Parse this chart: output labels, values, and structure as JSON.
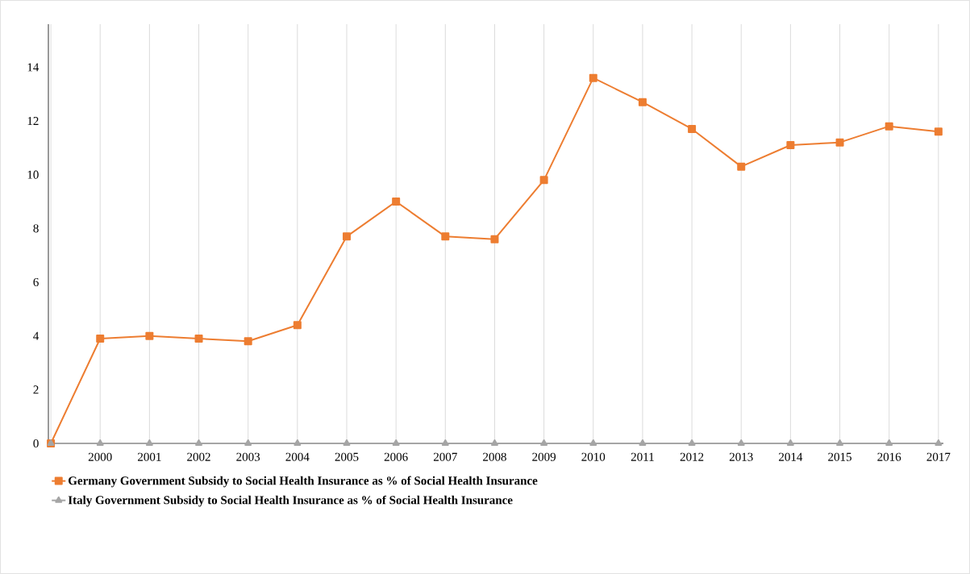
{
  "chart_data": {
    "type": "line",
    "categories": [
      null,
      "2000",
      "2001",
      "2002",
      "2003",
      "2004",
      "2005",
      "2006",
      "2007",
      "2008",
      "2009",
      "2010",
      "2011",
      "2012",
      "2013",
      "2014",
      "2015",
      "2016",
      "2017"
    ],
    "series": [
      {
        "name": "Germany Government Subsidy to Social Health Insurance as % of Social Health Insurance",
        "color": "#ed7d31",
        "marker": "square",
        "values": [
          0,
          3.9,
          4.0,
          3.9,
          3.8,
          4.4,
          7.7,
          9.0,
          7.7,
          7.6,
          9.8,
          13.6,
          12.7,
          11.7,
          10.3,
          11.1,
          11.2,
          11.8,
          11.6
        ]
      },
      {
        "name": "Italy Government Subsidy to Social Health Insurance as % of Social Health Insurance",
        "color": "#a5a5a5",
        "marker": "triangle",
        "values": [
          0,
          0,
          0,
          0,
          0,
          0,
          0,
          0,
          0,
          0,
          0,
          0,
          0,
          0,
          0,
          0,
          0,
          0,
          0
        ]
      }
    ],
    "ylim": [
      0,
      15.6
    ],
    "yticks": [
      0,
      2,
      4,
      6,
      8,
      10,
      12,
      14
    ],
    "grid": "x",
    "legend": "bottom left",
    "line_style": "solid"
  }
}
